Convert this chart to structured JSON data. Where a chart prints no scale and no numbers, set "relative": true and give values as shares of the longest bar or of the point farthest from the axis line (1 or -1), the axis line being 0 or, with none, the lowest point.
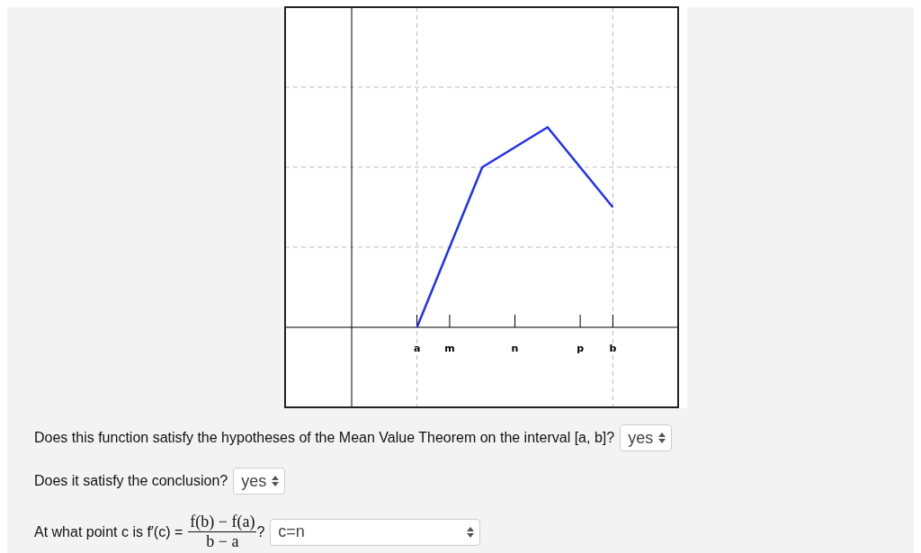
{
  "chart_data": {
    "type": "line",
    "relative": true,
    "categories": [
      null,
      null,
      "a",
      "m",
      null,
      "n",
      null,
      "p",
      "b",
      null,
      null
    ],
    "series": [
      {
        "color": "#1f2ff5",
        "values": [
          null,
          null,
          0,
          null,
          0.8,
          null,
          1,
          null,
          0.6,
          null,
          null
        ]
      }
    ],
    "ref_lines": [
      {
        "axis": "x",
        "value": "a",
        "color": "#bbbbbb",
        "line_style": "dashed"
      },
      {
        "axis": "x",
        "value": "b",
        "color": "#bbbbbb",
        "line_style": "dashed"
      },
      {
        "axis": "y",
        "value": 0.4,
        "color": "#bbbbbb",
        "line_style": "dashed"
      },
      {
        "axis": "y",
        "value": 0.8,
        "color": "#bbbbbb",
        "line_style": "dashed"
      },
      {
        "axis": "y",
        "value": 1.2,
        "color": "#bbbbbb",
        "line_style": "dashed"
      }
    ],
    "marker": "none",
    "line_style": "solid",
    "legend": false,
    "tick_labels": "x",
    "annotations": [
      "Does this function satisfy the hypotheses of the Mean Value Theorem on the interval [a, b]?",
      "yes",
      "Does it satisfy the conclusion?",
      "yes",
      "At what point c is f′(c) =",
      "f(b) − f(a)",
      "b − a",
      "?",
      "c=n"
    ]
  }
}
